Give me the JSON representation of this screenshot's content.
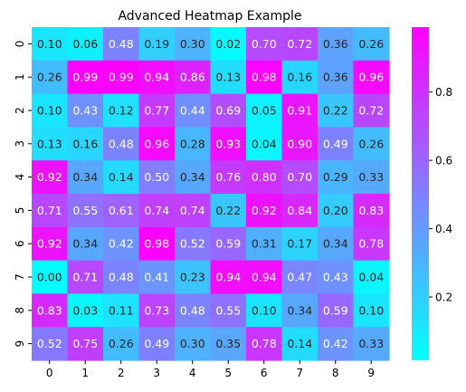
{
  "chart_data": {
    "type": "heatmap",
    "title": "Advanced Heatmap Example",
    "xlabel": "",
    "ylabel": "",
    "x_categories": [
      "0",
      "1",
      "2",
      "3",
      "4",
      "5",
      "6",
      "7",
      "8",
      "9"
    ],
    "y_categories": [
      "0",
      "1",
      "2",
      "3",
      "4",
      "5",
      "6",
      "7",
      "8",
      "9"
    ],
    "values": [
      [
        0.1,
        0.06,
        0.48,
        0.19,
        0.3,
        0.02,
        0.7,
        0.72,
        0.36,
        0.26
      ],
      [
        0.26,
        0.99,
        0.99,
        0.94,
        0.86,
        0.13,
        0.98,
        0.16,
        0.36,
        0.96
      ],
      [
        0.1,
        0.43,
        0.12,
        0.77,
        0.44,
        0.69,
        0.05,
        0.91,
        0.22,
        0.72
      ],
      [
        0.13,
        0.16,
        0.48,
        0.96,
        0.28,
        0.93,
        0.04,
        0.9,
        0.49,
        0.26
      ],
      [
        0.92,
        0.34,
        0.14,
        0.5,
        0.34,
        0.76,
        0.8,
        0.7,
        0.29,
        0.33
      ],
      [
        0.71,
        0.55,
        0.61,
        0.74,
        0.74,
        0.22,
        0.92,
        0.84,
        0.2,
        0.83
      ],
      [
        0.92,
        0.34,
        0.42,
        0.98,
        0.52,
        0.59,
        0.31,
        0.17,
        0.34,
        0.78
      ],
      [
        0.0,
        0.71,
        0.48,
        0.41,
        0.23,
        0.94,
        0.94,
        0.47,
        0.43,
        0.04
      ],
      [
        0.83,
        0.03,
        0.11,
        0.73,
        0.48,
        0.55,
        0.1,
        0.34,
        0.59,
        0.1
      ],
      [
        0.52,
        0.75,
        0.26,
        0.49,
        0.3,
        0.35,
        0.78,
        0.14,
        0.42,
        0.33
      ]
    ],
    "colormap": "cool",
    "color_low": "#00ffff",
    "color_high": "#ff00ff",
    "vmin": 0.0,
    "vmax": 0.99,
    "colorbar_ticks": [
      0.2,
      0.4,
      0.6,
      0.8
    ],
    "annotations": true,
    "annotation_format": "2 decimals",
    "grid": false
  }
}
